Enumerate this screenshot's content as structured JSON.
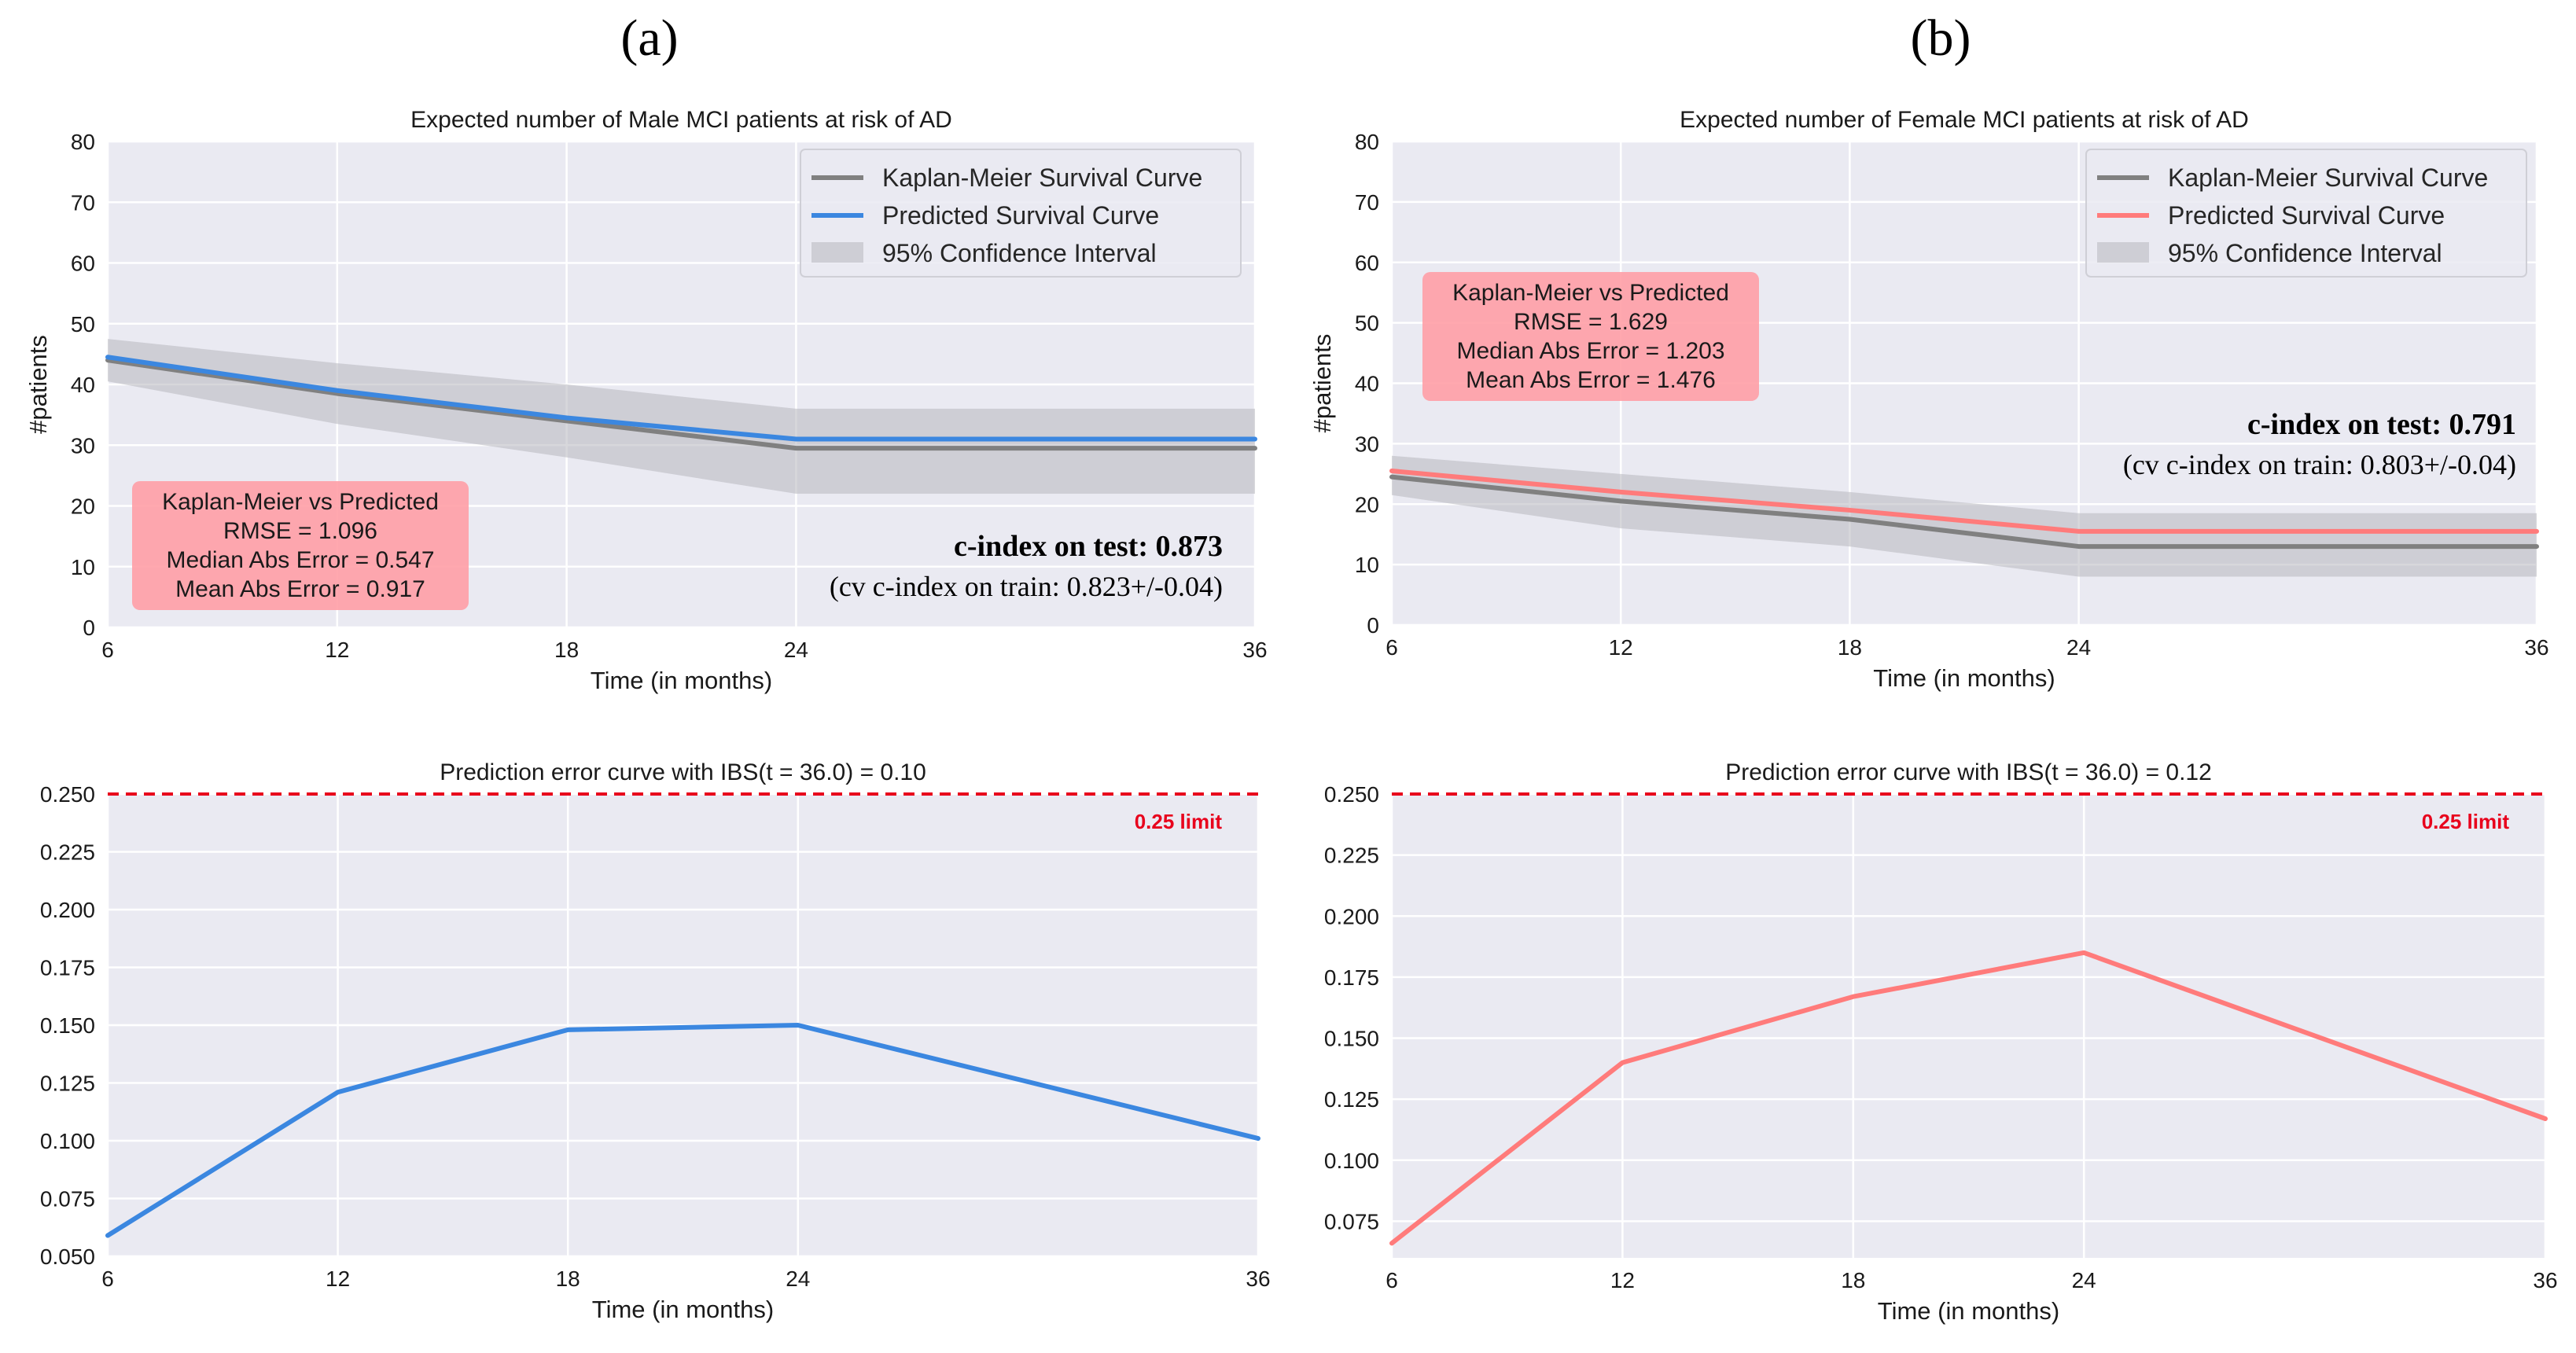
{
  "panel_labels": [
    "(a)",
    "(b)"
  ],
  "colors": {
    "km": "#808080",
    "male_pred": "#3b87e0",
    "female_pred": "#ff7b7b",
    "ci_fill": "#b7b7bd",
    "stat_box": "#ff9ea6",
    "limit_line": "#e8001c",
    "plot_bg": "#eaeaf2",
    "grid": "#ffffff"
  },
  "chart_data": [
    {
      "id": "male-survival",
      "type": "line",
      "title": "Expected number of Male MCI patients at risk of AD",
      "xlabel": "Time (in months)",
      "ylabel": "#patients",
      "x": [
        6,
        12,
        18,
        24,
        36
      ],
      "xticks": [
        6,
        12,
        18,
        24,
        36
      ],
      "yticks": [
        0,
        10,
        20,
        30,
        40,
        50,
        60,
        70,
        80
      ],
      "xlim": [
        6,
        36
      ],
      "ylim": [
        0,
        80
      ],
      "series": [
        {
          "name": "Kaplan-Meier Survival Curve",
          "values": [
            44.0,
            38.5,
            34.0,
            29.5,
            29.5
          ],
          "color": "#808080"
        },
        {
          "name": "Predicted Survival Curve",
          "values": [
            44.5,
            39.0,
            34.5,
            31.0,
            31.0
          ],
          "color": "#3b87e0"
        }
      ],
      "ci": {
        "name": "95% Confidence Interval",
        "lower": [
          40.5,
          33.5,
          28.0,
          22.0,
          22.0
        ],
        "upper": [
          47.5,
          43.5,
          40.0,
          36.0,
          36.0
        ]
      },
      "legend": [
        "Kaplan-Meier Survival Curve",
        "Predicted Survival Curve",
        "95% Confidence Interval"
      ],
      "stats_box": [
        "Kaplan-Meier vs Predicted",
        "RMSE = 1.096",
        "Median Abs Error = 0.547",
        "Mean Abs Error = 0.917"
      ],
      "cindex_label": "c-index on test: 0.873",
      "cv_label": "(cv c-index on train: 0.823+/-0.04)"
    },
    {
      "id": "female-survival",
      "type": "line",
      "title": "Expected number of Female MCI patients at risk of AD",
      "xlabel": "Time (in months)",
      "ylabel": "#patients",
      "x": [
        6,
        12,
        18,
        24,
        36
      ],
      "xticks": [
        6,
        12,
        18,
        24,
        36
      ],
      "yticks": [
        0,
        10,
        20,
        30,
        40,
        50,
        60,
        70,
        80
      ],
      "xlim": [
        6,
        36
      ],
      "ylim": [
        0,
        80
      ],
      "series": [
        {
          "name": "Kaplan-Meier Survival Curve",
          "values": [
            24.5,
            20.5,
            17.5,
            13.0,
            13.0
          ],
          "color": "#808080"
        },
        {
          "name": "Predicted Survival Curve",
          "values": [
            25.5,
            22.0,
            19.0,
            15.5,
            15.5
          ],
          "color": "#ff7b7b"
        }
      ],
      "ci": {
        "name": "95% Confidence Interval",
        "lower": [
          21.5,
          16.0,
          13.0,
          8.0,
          8.0
        ],
        "upper": [
          28.0,
          25.0,
          22.0,
          18.5,
          18.5
        ]
      },
      "legend": [
        "Kaplan-Meier Survival Curve",
        "Predicted Survival Curve",
        "95% Confidence Interval"
      ],
      "stats_box": [
        "Kaplan-Meier vs Predicted",
        "RMSE = 1.629",
        "Median Abs Error = 1.203",
        "Mean Abs Error = 1.476"
      ],
      "cindex_label": "c-index on test: 0.791",
      "cv_label": "(cv c-index on train: 0.803+/-0.04)"
    },
    {
      "id": "male-error",
      "type": "line",
      "title": "Prediction error curve with IBS(t = 36.0) = 0.10",
      "xlabel": "Time (in months)",
      "x": [
        6,
        12,
        18,
        24,
        36
      ],
      "xticks": [
        6,
        12,
        18,
        24,
        36
      ],
      "yticks": [
        0.05,
        0.075,
        0.1,
        0.125,
        0.15,
        0.175,
        0.2,
        0.225,
        0.25
      ],
      "ytick_labels": [
        "0.050",
        "0.075",
        "0.100",
        "0.125",
        "0.150",
        "0.175",
        "0.200",
        "0.225",
        "0.250"
      ],
      "xlim": [
        6,
        36
      ],
      "ylim": [
        0.05,
        0.25
      ],
      "series": [
        {
          "name": "Prediction error",
          "values": [
            0.059,
            0.121,
            0.148,
            0.15,
            0.101
          ],
          "color": "#3b87e0"
        }
      ],
      "limit": {
        "value": 0.25,
        "label": "0.25 limit"
      }
    },
    {
      "id": "female-error",
      "type": "line",
      "title": "Prediction error curve with IBS(t = 36.0) = 0.12",
      "xlabel": "Time (in months)",
      "x": [
        6,
        12,
        18,
        24,
        36
      ],
      "xticks": [
        6,
        12,
        18,
        24,
        36
      ],
      "yticks": [
        0.075,
        0.1,
        0.125,
        0.15,
        0.175,
        0.2,
        0.225,
        0.25
      ],
      "ytick_labels": [
        "0.075",
        "0.100",
        "0.125",
        "0.150",
        "0.175",
        "0.200",
        "0.225",
        "0.250"
      ],
      "xlim": [
        6,
        36
      ],
      "ylim": [
        0.06,
        0.25
      ],
      "series": [
        {
          "name": "Prediction error",
          "values": [
            0.066,
            0.14,
            0.167,
            0.185,
            0.117
          ],
          "color": "#ff7b7b"
        }
      ],
      "limit": {
        "value": 0.25,
        "label": "0.25 limit"
      }
    }
  ]
}
